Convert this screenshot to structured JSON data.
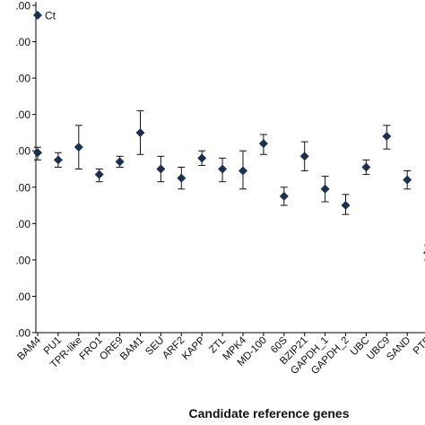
{
  "chart_data": {
    "type": "scatter",
    "xlabel": "Candidate reference genes",
    "ylabel": "",
    "ylim": [
      16,
      34
    ],
    "y_ticks": [
      16,
      18,
      20,
      22,
      24,
      26,
      28,
      30,
      32,
      34
    ],
    "y_tick_labels": [
      ".00",
      ".00",
      ".00",
      ".00",
      ".00",
      ".00",
      ".00",
      ".00",
      ".00",
      ".00"
    ],
    "grid": false,
    "legend": {
      "position": "top-left",
      "entries": [
        "Ct"
      ]
    },
    "colors": {
      "marker": "#1a3050",
      "error_bar": "#111111",
      "axis": "#000000"
    },
    "categories": [
      "BAM4",
      "PU1",
      "TPR-like",
      "FRO1",
      "ORE9",
      "BAM1",
      "SEU",
      "ARF2",
      "KAPP",
      "ZTL",
      "MPK4",
      "MD-100",
      "60S",
      "BZIP21",
      "GAPDH_1",
      "GAPDH_2",
      "UBC",
      "UBC9",
      "SAND",
      "PTB"
    ],
    "series": [
      {
        "name": "Ct",
        "values": [
          25.9,
          25.5,
          26.2,
          24.7,
          25.4,
          27.0,
          25.0,
          24.5,
          25.6,
          25.0,
          24.9,
          26.4,
          23.5,
          25.7,
          23.9,
          23.0,
          25.1,
          26.8,
          24.4,
          20.4
        ],
        "err_low": [
          25.5,
          25.1,
          25.0,
          24.3,
          25.1,
          25.8,
          24.3,
          23.9,
          25.2,
          24.3,
          23.9,
          25.8,
          23.0,
          24.9,
          23.2,
          22.5,
          24.7,
          26.1,
          23.9,
          20.0
        ],
        "err_high": [
          26.2,
          25.9,
          27.4,
          25.0,
          25.7,
          28.2,
          25.7,
          25.1,
          26.0,
          25.6,
          26.0,
          26.9,
          24.0,
          26.5,
          24.6,
          23.6,
          25.5,
          27.4,
          24.9,
          20.8
        ]
      }
    ]
  }
}
